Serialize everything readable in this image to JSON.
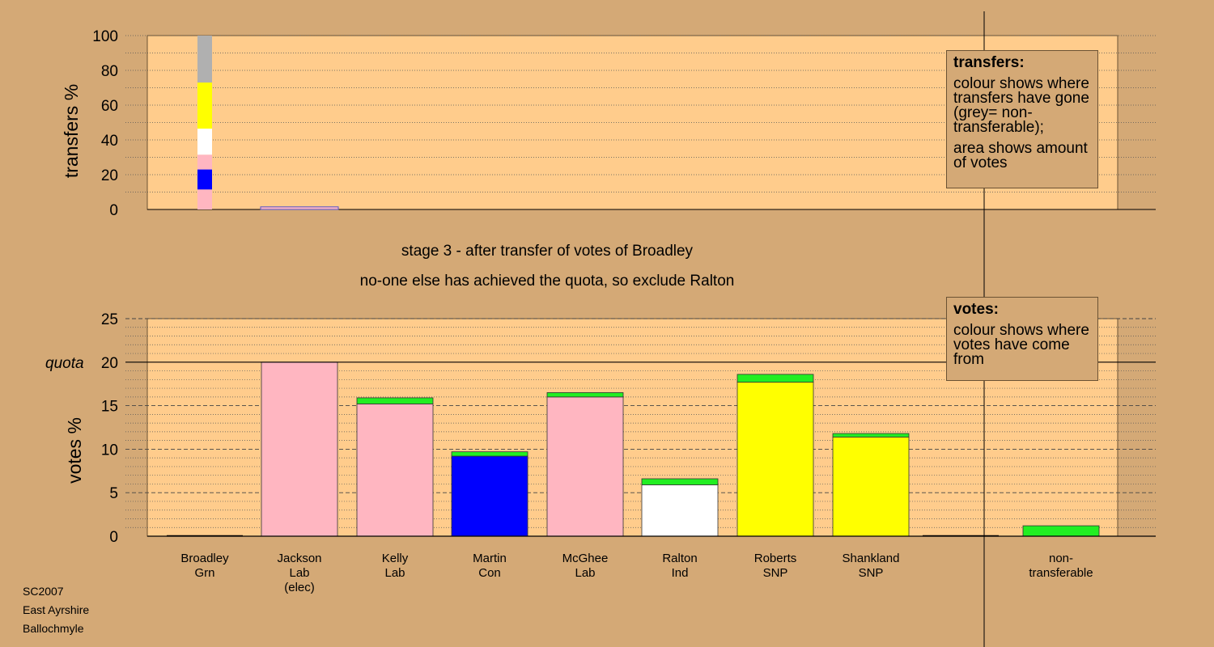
{
  "chart_data": [
    {
      "type": "bar",
      "stacked": true,
      "ylabel": "transfers %",
      "ylim": [
        0,
        100
      ],
      "yticks": [
        0,
        20,
        40,
        60,
        80,
        100
      ],
      "grid": "dotted",
      "bars": [
        {
          "slot": 0,
          "segments": [
            {
              "color": "#ffb6c1",
              "value": 11.5
            },
            {
              "color": "#0000ff",
              "value": 11.5
            },
            {
              "color": "#ffb6c1",
              "value": 8.5
            },
            {
              "color": "#ffffff",
              "value": 15.0
            },
            {
              "color": "#ffff00",
              "value": 26.5
            },
            {
              "color": "#b0b0b0",
              "value": 27.0
            }
          ]
        },
        {
          "slot": 1,
          "segments": [
            {
              "color": "#ffb6c1",
              "value": 1.5
            }
          ]
        }
      ],
      "legend": {
        "title": "transfers:",
        "lines": [
          "colour shows where transfers have gone (grey= non-transferable);",
          "area shows amount of votes"
        ],
        "position": "top-right"
      }
    },
    {
      "type": "bar",
      "stacked": true,
      "ylabel": "votes %",
      "ylim": [
        0,
        25
      ],
      "yticks": [
        0,
        5,
        10,
        15,
        20,
        25
      ],
      "quota_label": "quota",
      "quota": 20,
      "grid": "dotted minor, dashed major",
      "categories": [
        "Broadley\nGrn",
        "Jackson\nLab\n(elec)",
        "Kelly\nLab",
        "Martin\nCon",
        "McGhee\nLab",
        "Ralton\nInd",
        "Roberts\nSNP",
        "Shankland\nSNP",
        "",
        "non-\ntransferable"
      ],
      "series_stacks": [
        [],
        [
          {
            "color": "#ffb6c1",
            "value": 20.0
          }
        ],
        [
          {
            "color": "#ffb6c1",
            "value": 15.2
          },
          {
            "color": "#22ee22",
            "value": 0.7
          }
        ],
        [
          {
            "color": "#0000ff",
            "value": 9.2
          },
          {
            "color": "#22ee22",
            "value": 0.5
          }
        ],
        [
          {
            "color": "#ffb6c1",
            "value": 16.0
          },
          {
            "color": "#22ee22",
            "value": 0.5
          }
        ],
        [
          {
            "color": "#ffffff",
            "value": 5.9
          },
          {
            "color": "#22ee22",
            "value": 0.7
          }
        ],
        [
          {
            "color": "#ffff00",
            "value": 17.7
          },
          {
            "color": "#22ee22",
            "value": 0.9
          }
        ],
        [
          {
            "color": "#ffff00",
            "value": 11.4
          },
          {
            "color": "#22ee22",
            "value": 0.4
          }
        ],
        [],
        [
          {
            "color": "#22ee22",
            "value": 1.2
          }
        ]
      ],
      "legend": {
        "title": "votes:",
        "lines": [
          "colour shows where votes have come from"
        ],
        "position": "top-right"
      }
    }
  ],
  "captions": {
    "stage": "stage 3 - after transfer of votes of Broadley",
    "decision": "no-one else has achieved the quota, so exclude Ralton"
  },
  "footer": [
    "SC2007",
    "East Ayrshire",
    "Ballochmyle"
  ],
  "colors": {
    "background": "#d4a976",
    "plot_area": "#ffcc8c",
    "labour": "#ffb6c1",
    "conservative": "#0000ff",
    "independent": "#ffffff",
    "snp": "#ffff00",
    "green": "#22ee22",
    "non_transferable": "#b0b0b0"
  }
}
